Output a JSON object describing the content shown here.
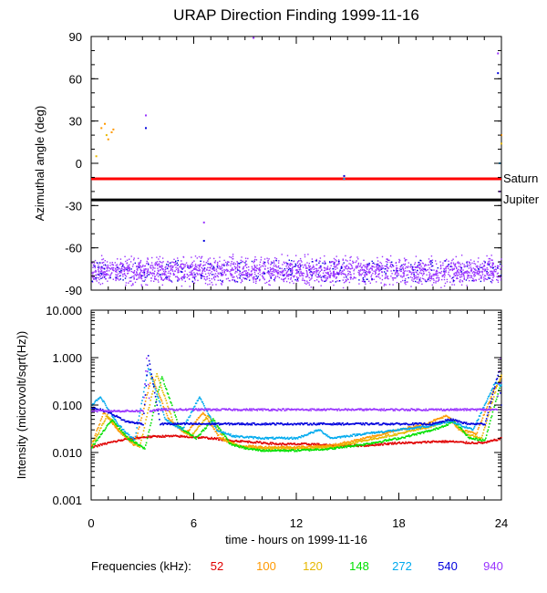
{
  "title": "URAP Direction Finding  1999-11-16",
  "xlabel": "time - hours on 1999-11-16",
  "xticks": [
    "0",
    "6",
    "12",
    "18",
    "24"
  ],
  "legend_prefix": "Frequencies (kHz):",
  "colors": {
    "f52": "#e00000",
    "f100": "#ff9900",
    "f120": "#e6b800",
    "f148": "#00e000",
    "f272": "#00aaee",
    "f540": "#0000dd",
    "f940": "#9933ff",
    "saturn": "#ff0000",
    "jupiter": "#000000"
  },
  "chart_data": [
    {
      "type": "scatter",
      "title": "URAP Direction Finding  1999-11-16",
      "xlabel": "",
      "ylabel": "Azimuthal angle (deg)",
      "xlim": [
        0,
        24
      ],
      "ylim": [
        -90,
        90
      ],
      "xticks": [
        0,
        6,
        12,
        18,
        24
      ],
      "yticks": [
        90,
        60,
        30,
        0,
        -30,
        -60,
        -90
      ],
      "ytick_labels": [
        "90",
        "60",
        "30",
        "0",
        "-30",
        "-60",
        "-90"
      ],
      "reference_lines": [
        {
          "name": "Saturn",
          "y": -11,
          "color": "#ff0000"
        },
        {
          "name": "Jupiter",
          "y": -26,
          "color": "#000000"
        }
      ],
      "band_940": {
        "y_center": -76,
        "y_spread": 7,
        "x_range": [
          0,
          24
        ]
      },
      "scattered_points": [
        {
          "freq": "100",
          "x": 0.6,
          "y": 25
        },
        {
          "freq": "100",
          "x": 0.8,
          "y": 28
        },
        {
          "freq": "100",
          "x": 1.0,
          "y": 17
        },
        {
          "freq": "100",
          "x": 1.2,
          "y": 22
        },
        {
          "freq": "100",
          "x": 1.3,
          "y": 24
        },
        {
          "freq": "120",
          "x": 0.3,
          "y": 5
        },
        {
          "freq": "120",
          "x": 0.9,
          "y": 20
        },
        {
          "freq": "540",
          "x": 3.2,
          "y": 25
        },
        {
          "freq": "940",
          "x": 3.2,
          "y": 34
        },
        {
          "freq": "940",
          "x": 6.6,
          "y": -42
        },
        {
          "freq": "540",
          "x": 6.6,
          "y": -55
        },
        {
          "freq": "540",
          "x": 14.8,
          "y": -9
        },
        {
          "freq": "272",
          "x": 14.8,
          "y": -11
        },
        {
          "freq": "940",
          "x": 9.5,
          "y": 89
        },
        {
          "freq": "540",
          "x": 23.8,
          "y": 64
        },
        {
          "freq": "940",
          "x": 23.8,
          "y": 78
        },
        {
          "freq": "100",
          "x": 24.0,
          "y": 20
        },
        {
          "freq": "120",
          "x": 24.0,
          "y": 14
        },
        {
          "freq": "272",
          "x": 23.9,
          "y": 0
        },
        {
          "freq": "940",
          "x": 23.9,
          "y": -20
        }
      ]
    },
    {
      "type": "line",
      "title": "",
      "xlabel": "time - hours on 1999-11-16",
      "ylabel": "Intensity (microvolt/sqrt(Hz))",
      "xlim": [
        0,
        24
      ],
      "ylim": [
        0.001,
        10
      ],
      "yscale": "log",
      "xticks": [
        0,
        6,
        12,
        18,
        24
      ],
      "yticks": [
        10,
        1,
        0.1,
        0.01,
        0.001
      ],
      "ytick_labels": [
        "10.000",
        "1.000",
        "0.100",
        "0.010",
        "0.001"
      ],
      "series": [
        {
          "name": "52",
          "color": "#e00000",
          "x": [
            0,
            1,
            2,
            3,
            4,
            5,
            6,
            7,
            8,
            9,
            10,
            11,
            12,
            13,
            14,
            15,
            16,
            17,
            18,
            19,
            20,
            21,
            22,
            23,
            24
          ],
          "y": [
            0.013,
            0.016,
            0.019,
            0.021,
            0.022,
            0.022,
            0.021,
            0.02,
            0.018,
            0.017,
            0.016,
            0.015,
            0.015,
            0.015,
            0.014,
            0.014,
            0.014,
            0.015,
            0.016,
            0.016,
            0.017,
            0.017,
            0.016,
            0.016,
            0.02
          ]
        },
        {
          "name": "100",
          "color": "#ff9900",
          "x": [
            0,
            0.7,
            1.5,
            2.5,
            3.5,
            4.5,
            5.5,
            6.5,
            7.5,
            8.5,
            10,
            12,
            14,
            16,
            18,
            19.5,
            20.8,
            21.5,
            22.5,
            23.5,
            24
          ],
          "y": [
            0.015,
            0.07,
            0.03,
            0.014,
            0.4,
            0.05,
            0.025,
            0.07,
            0.02,
            0.014,
            0.013,
            0.013,
            0.014,
            0.02,
            0.03,
            0.04,
            0.06,
            0.03,
            0.025,
            0.2,
            0.4
          ]
        },
        {
          "name": "120",
          "color": "#e6b800",
          "x": [
            0,
            0.9,
            1.8,
            2.8,
            3.8,
            4.8,
            5.8,
            6.8,
            7.8,
            8.8,
            10,
            12,
            14,
            16,
            18,
            19.8,
            21,
            21.8,
            22.8,
            23.7,
            24
          ],
          "y": [
            0.014,
            0.06,
            0.025,
            0.013,
            0.45,
            0.04,
            0.022,
            0.06,
            0.018,
            0.013,
            0.012,
            0.012,
            0.013,
            0.018,
            0.025,
            0.035,
            0.05,
            0.025,
            0.02,
            0.25,
            0.45
          ]
        },
        {
          "name": "148",
          "color": "#00e000",
          "x": [
            0,
            1.2,
            2.1,
            3.1,
            4.1,
            5.1,
            6.1,
            7.1,
            8.1,
            9.1,
            10,
            12,
            14,
            16,
            18,
            20,
            21.2,
            22.1,
            23,
            23.8,
            24
          ],
          "y": [
            0.013,
            0.05,
            0.02,
            0.012,
            0.4,
            0.035,
            0.02,
            0.05,
            0.015,
            0.012,
            0.011,
            0.011,
            0.012,
            0.015,
            0.02,
            0.03,
            0.045,
            0.02,
            0.018,
            0.2,
            0.35
          ]
        },
        {
          "name": "272",
          "color": "#00aaee",
          "x": [
            0,
            0.5,
            1.5,
            2.5,
            3.3,
            4.3,
            5.3,
            6.3,
            7.3,
            8.3,
            10,
            12,
            13.3,
            14,
            16,
            18,
            19.5,
            21,
            22.3,
            23.6,
            24
          ],
          "y": [
            0.1,
            0.15,
            0.04,
            0.018,
            0.6,
            0.05,
            0.03,
            0.15,
            0.03,
            0.022,
            0.02,
            0.02,
            0.03,
            0.02,
            0.025,
            0.03,
            0.035,
            0.045,
            0.03,
            0.3,
            0.25
          ]
        },
        {
          "name": "540",
          "color": "#0000dd",
          "x": [
            0,
            1,
            2,
            3,
            3.3,
            4,
            6,
            8,
            10,
            12,
            14,
            16,
            18,
            20,
            21,
            22,
            23,
            23.8,
            24
          ],
          "y": [
            0.09,
            0.07,
            0.045,
            0.04,
            1.1,
            0.04,
            0.04,
            0.04,
            0.04,
            0.04,
            0.04,
            0.04,
            0.04,
            0.04,
            0.05,
            0.04,
            0.04,
            0.5,
            0.06
          ]
        },
        {
          "name": "940",
          "color": "#9933ff",
          "x": [
            0,
            2,
            3,
            3.2,
            3.4,
            4,
            6,
            8,
            10,
            12,
            14,
            16,
            18,
            20,
            22,
            23.7,
            23.9,
            24
          ],
          "y": [
            0.075,
            0.075,
            0.075,
            1.0,
            0.075,
            0.08,
            0.08,
            0.08,
            0.08,
            0.08,
            0.08,
            0.08,
            0.08,
            0.08,
            0.08,
            0.08,
            1.0,
            0.08
          ]
        }
      ]
    }
  ],
  "legend": [
    {
      "label": "52",
      "color": "#e00000"
    },
    {
      "label": "100",
      "color": "#ff9900"
    },
    {
      "label": "120",
      "color": "#e6b800"
    },
    {
      "label": "148",
      "color": "#00e000"
    },
    {
      "label": "272",
      "color": "#00aaee"
    },
    {
      "label": "540",
      "color": "#0000dd"
    },
    {
      "label": "940",
      "color": "#9933ff"
    }
  ]
}
